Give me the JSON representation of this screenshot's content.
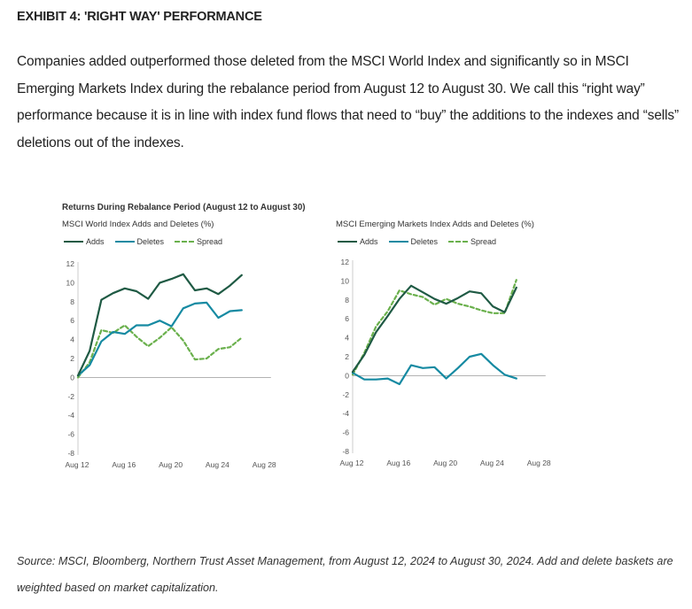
{
  "exhibit": {
    "title": "EXHIBIT 4: 'RIGHT WAY' PERFORMANCE",
    "intro": "Companies added outperformed those deleted from the MSCI World Index and significantly so in MSCI Emerging Markets Index during the rebalance period from August 12 to August 30. We call this “right way” performance because it is in line with index fund flows that need to “buy” the additions to the indexes and “sells” deletions out of the indexes."
  },
  "chart_header": "Returns During Rebalance Period (August 12 to August 30)",
  "colors": {
    "adds": "#1f5a44",
    "deletes": "#168aa2",
    "spread": "#6ab04c",
    "axis": "#cccccc",
    "zero": "#999999"
  },
  "source": "Source: MSCI, Bloomberg, Northern Trust Asset Management, from August 12, 2024 to August 30, 2024. Add and delete baskets are weighted based on market capitalization.",
  "chart_data": [
    {
      "type": "line",
      "title": "MSCI World Index Adds and Deletes (%)",
      "x": [
        "Aug 12",
        "Aug 13",
        "Aug 14",
        "Aug 15",
        "Aug 16",
        "Aug 19",
        "Aug 20",
        "Aug 21",
        "Aug 22",
        "Aug 23",
        "Aug 26",
        "Aug 27",
        "Aug 28",
        "Aug 29",
        "Aug 30"
      ],
      "x_tick_labels": [
        "Aug 12",
        "Aug 16",
        "Aug 20",
        "Aug 24",
        "Aug 28"
      ],
      "x_tick_positions": [
        0,
        4,
        8,
        12,
        16
      ],
      "y_ticks": [
        12,
        10,
        8,
        6,
        4,
        2,
        0,
        -2,
        -4,
        -6,
        -8
      ],
      "ylim": [
        -8,
        12
      ],
      "series": [
        {
          "name": "Adds",
          "style": "solid",
          "values": [
            0.2,
            2.8,
            8.2,
            8.9,
            9.4,
            9.1,
            8.3,
            10.0,
            10.4,
            10.9,
            9.2,
            9.4,
            8.8,
            9.7,
            10.8
          ]
        },
        {
          "name": "Deletes",
          "style": "solid",
          "values": [
            0.2,
            1.3,
            3.8,
            4.8,
            4.6,
            5.5,
            5.5,
            6.0,
            5.4,
            7.3,
            7.8,
            7.9,
            6.3,
            7.0,
            7.1
          ]
        },
        {
          "name": "Spread",
          "style": "dashed",
          "values": [
            0.0,
            1.6,
            5.0,
            4.7,
            5.5,
            4.3,
            3.3,
            4.2,
            5.3,
            3.9,
            1.9,
            2.0,
            3.0,
            3.2,
            4.2
          ]
        }
      ],
      "legend_position": "top-left",
      "grid": false
    },
    {
      "type": "line",
      "title": "MSCI Emerging Markets Index Adds and Deletes (%)",
      "x": [
        "Aug 12",
        "Aug 13",
        "Aug 14",
        "Aug 15",
        "Aug 16",
        "Aug 19",
        "Aug 20",
        "Aug 21",
        "Aug 22",
        "Aug 23",
        "Aug 26",
        "Aug 27",
        "Aug 28",
        "Aug 29",
        "Aug 30"
      ],
      "x_tick_labels": [
        "Aug 12",
        "Aug 16",
        "Aug 20",
        "Aug 24",
        "Aug 28"
      ],
      "x_tick_positions": [
        0,
        4,
        8,
        12,
        16
      ],
      "y_ticks": [
        12,
        10,
        8,
        6,
        4,
        2,
        0,
        -2,
        -4,
        -6,
        -8
      ],
      "ylim": [
        -8,
        12
      ],
      "series": [
        {
          "name": "Adds",
          "style": "solid",
          "values": [
            0.4,
            2.2,
            4.6,
            6.3,
            8.1,
            9.5,
            8.8,
            8.1,
            7.6,
            8.2,
            8.9,
            8.7,
            7.3,
            6.7,
            9.3
          ]
        },
        {
          "name": "Deletes",
          "style": "solid",
          "values": [
            0.3,
            -0.4,
            -0.4,
            -0.3,
            -0.9,
            1.1,
            0.8,
            0.9,
            -0.3,
            0.8,
            2.0,
            2.3,
            1.1,
            0.1,
            -0.3
          ]
        },
        {
          "name": "Spread",
          "style": "dashed",
          "values": [
            0.1,
            2.4,
            5.2,
            6.8,
            9.0,
            8.6,
            8.3,
            7.5,
            8.1,
            7.6,
            7.3,
            6.9,
            6.6,
            6.6,
            10.1
          ]
        }
      ],
      "legend_position": "top-left",
      "grid": false
    }
  ]
}
